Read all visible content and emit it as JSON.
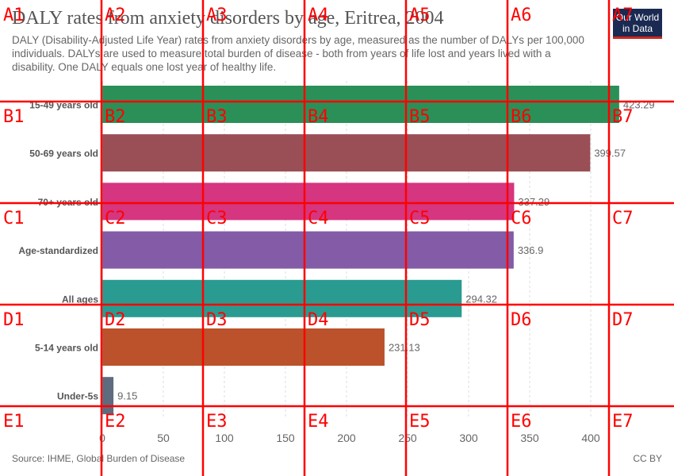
{
  "header": {
    "title": "DALY rates from anxiety disorders by age, Eritrea, 2004",
    "subtitle": "DALY (Disability-Adjusted Life Year) rates from anxiety disorders by age, measured as the number of DALYs per 100,000 individuals. DALYs are used to measure total burden of disease - both from years of life lost and years lived with a disability. One DALY equals one lost year of healthy life.",
    "logo_line1": "Our World",
    "logo_line2": "in Data"
  },
  "footer": {
    "source": "Source: IHME, Global Burden of Disease",
    "license": "CC BY"
  },
  "chart_data": {
    "type": "bar",
    "orientation": "horizontal",
    "categories": [
      "15-49 years old",
      "50-69 years old",
      "70+ years old",
      "Age-standardized",
      "All ages",
      "5-14 years old",
      "Under-5s"
    ],
    "values": [
      423.29,
      399.57,
      337.29,
      336.9,
      294.32,
      231.13,
      9.15
    ],
    "value_labels": [
      "423.29",
      "399.57",
      "337.29",
      "336.9",
      "294.32",
      "231.13",
      "9.15"
    ],
    "colors": [
      "#2a9058",
      "#9a4e55",
      "#d63580",
      "#835ba6",
      "#2a9b90",
      "#bb522b",
      "#5f6b7e"
    ],
    "xlim": [
      0,
      400
    ],
    "xticks": [
      0,
      50,
      100,
      150,
      200,
      250,
      300,
      350,
      400
    ],
    "grid": "vertical-dashed"
  },
  "overlay_grid": {
    "color": "#ff0000",
    "cells": [
      [
        "A1",
        "A2",
        "A3",
        "A4",
        "A5",
        "A6",
        "A7"
      ],
      [
        "B1",
        "B2",
        "B3",
        "B4",
        "B5",
        "B6",
        "B7"
      ],
      [
        "C1",
        "C2",
        "C3",
        "C4",
        "C5",
        "C6",
        "C7"
      ],
      [
        "D1",
        "D2",
        "D3",
        "D4",
        "D5",
        "D6",
        "D7"
      ],
      [
        "E1",
        "E2",
        "E3",
        "E4",
        "E5",
        "E6",
        "E7"
      ]
    ]
  }
}
